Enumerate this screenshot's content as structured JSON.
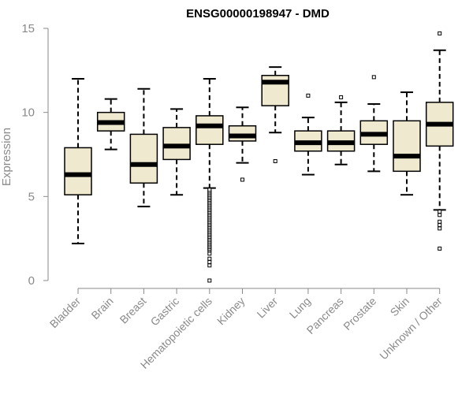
{
  "chart_data": {
    "type": "boxplot",
    "title": "ENSG00000198947 - DMD",
    "xlabel": "",
    "ylabel": "Expression",
    "ylim": [
      0,
      15
    ],
    "yticks": [
      0,
      5,
      10,
      15
    ],
    "categories": [
      "Bladder",
      "Brain",
      "Breast",
      "Gastric",
      "Hematopoietic cells",
      "Kidney",
      "Liver",
      "Lung",
      "Pancreas",
      "Prostate",
      "Skin",
      "Unknown / Other"
    ],
    "boxes": [
      {
        "name": "Bladder",
        "min": 2.2,
        "q1": 5.1,
        "median": 6.3,
        "q3": 7.9,
        "max": 12.0,
        "outliers": []
      },
      {
        "name": "Brain",
        "min": 7.8,
        "q1": 8.9,
        "median": 9.4,
        "q3": 10.0,
        "max": 10.8,
        "outliers": []
      },
      {
        "name": "Breast",
        "min": 4.4,
        "q1": 5.8,
        "median": 6.9,
        "q3": 8.7,
        "max": 11.4,
        "outliers": []
      },
      {
        "name": "Gastric",
        "min": 5.1,
        "q1": 7.2,
        "median": 8.0,
        "q3": 9.1,
        "max": 10.2,
        "outliers": []
      },
      {
        "name": "Hematopoietic cells",
        "min": 5.5,
        "q1": 8.1,
        "median": 9.2,
        "q3": 9.8,
        "max": 12.0,
        "outliers": [
          0.0,
          0.9,
          1.1,
          1.3,
          1.6,
          1.8,
          1.9,
          2.0,
          2.1,
          2.2,
          2.3,
          2.4,
          2.5,
          2.6,
          2.7,
          2.8,
          2.9,
          3.0,
          3.1,
          3.2,
          3.3,
          3.4,
          3.5,
          3.6,
          3.7,
          3.8,
          3.9,
          4.0,
          4.1,
          4.2,
          4.3,
          4.4,
          4.5,
          4.6,
          4.7,
          4.8,
          4.9,
          5.0,
          5.1,
          5.2,
          5.3,
          5.4
        ]
      },
      {
        "name": "Kidney",
        "min": 7.0,
        "q1": 8.3,
        "median": 8.6,
        "q3": 9.2,
        "max": 10.3,
        "outliers": [
          6.0
        ]
      },
      {
        "name": "Liver",
        "min": 8.8,
        "q1": 10.4,
        "median": 11.8,
        "q3": 12.2,
        "max": 12.7,
        "outliers": [
          7.1
        ]
      },
      {
        "name": "Lung",
        "min": 6.3,
        "q1": 7.7,
        "median": 8.2,
        "q3": 8.9,
        "max": 9.7,
        "outliers": [
          11.0
        ]
      },
      {
        "name": "Pancreas",
        "min": 6.9,
        "q1": 7.7,
        "median": 8.2,
        "q3": 8.9,
        "max": 10.6,
        "outliers": [
          10.9
        ]
      },
      {
        "name": "Prostate",
        "min": 6.5,
        "q1": 8.1,
        "median": 8.7,
        "q3": 9.5,
        "max": 10.5,
        "outliers": [
          12.1
        ]
      },
      {
        "name": "Skin",
        "min": 5.1,
        "q1": 6.5,
        "median": 7.4,
        "q3": 9.5,
        "max": 11.2,
        "outliers": []
      },
      {
        "name": "Unknown / Other",
        "min": 4.2,
        "q1": 8.0,
        "median": 9.3,
        "q3": 10.6,
        "max": 13.7,
        "outliers": [
          1.9,
          3.1,
          3.3,
          3.5,
          3.9,
          4.1,
          14.7
        ]
      }
    ],
    "colors": {
      "box_fill": "#efe9cf",
      "box_stroke": "#000000",
      "median": "#000000",
      "axis": "#8a8a8a"
    }
  }
}
